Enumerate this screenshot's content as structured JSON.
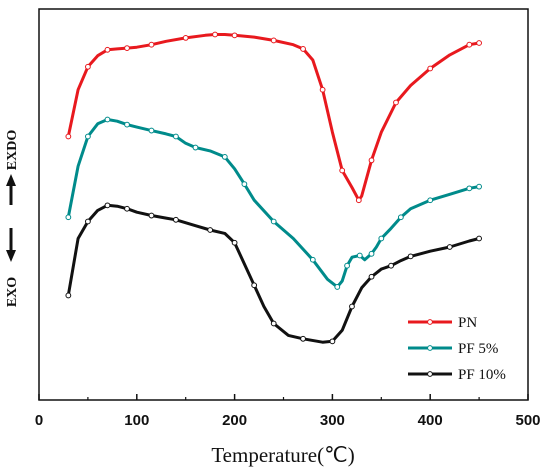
{
  "chart_data": {
    "type": "line",
    "xlabel": "Temperature(℃)",
    "ylabel_top": "EXDO",
    "ylabel_bottom": "EXO",
    "xlim": [
      0,
      500
    ],
    "ylim": [
      -2.2,
      2.4
    ],
    "x_ticks": [
      0,
      100,
      200,
      300,
      400,
      500
    ],
    "x_tick_labels": [
      "0",
      "100",
      "200",
      "300",
      "400",
      "500"
    ],
    "y_ticks_shown": false,
    "legend_position": "bottom-right",
    "series": [
      {
        "name": "PN",
        "color": "#e8191e",
        "marker": "circle",
        "points": [
          [
            30,
            0.9
          ],
          [
            40,
            1.45
          ],
          [
            50,
            1.72
          ],
          [
            60,
            1.85
          ],
          [
            70,
            1.92
          ],
          [
            80,
            1.93
          ],
          [
            90,
            1.94
          ],
          [
            100,
            1.95
          ],
          [
            115,
            1.98
          ],
          [
            130,
            2.02
          ],
          [
            150,
            2.06
          ],
          [
            170,
            2.09
          ],
          [
            180,
            2.1
          ],
          [
            190,
            2.1
          ],
          [
            200,
            2.09
          ],
          [
            220,
            2.07
          ],
          [
            240,
            2.03
          ],
          [
            260,
            1.98
          ],
          [
            270,
            1.93
          ],
          [
            280,
            1.8
          ],
          [
            290,
            1.45
          ],
          [
            300,
            0.95
          ],
          [
            310,
            0.5
          ],
          [
            320,
            0.3
          ],
          [
            327,
            0.15
          ],
          [
            330,
            0.2
          ],
          [
            340,
            0.62
          ],
          [
            350,
            0.95
          ],
          [
            365,
            1.3
          ],
          [
            380,
            1.5
          ],
          [
            400,
            1.7
          ],
          [
            420,
            1.86
          ],
          [
            440,
            1.98
          ],
          [
            450,
            2.0
          ]
        ]
      },
      {
        "name": "PF 5%",
        "color": "#008b8b",
        "marker": "circle",
        "points": [
          [
            30,
            -0.05
          ],
          [
            40,
            0.55
          ],
          [
            50,
            0.9
          ],
          [
            60,
            1.05
          ],
          [
            70,
            1.1
          ],
          [
            80,
            1.08
          ],
          [
            90,
            1.04
          ],
          [
            100,
            1.01
          ],
          [
            115,
            0.97
          ],
          [
            130,
            0.93
          ],
          [
            140,
            0.9
          ],
          [
            150,
            0.82
          ],
          [
            160,
            0.77
          ],
          [
            175,
            0.73
          ],
          [
            190,
            0.66
          ],
          [
            200,
            0.52
          ],
          [
            210,
            0.34
          ],
          [
            220,
            0.15
          ],
          [
            240,
            -0.1
          ],
          [
            260,
            -0.3
          ],
          [
            280,
            -0.55
          ],
          [
            295,
            -0.78
          ],
          [
            305,
            -0.87
          ],
          [
            310,
            -0.8
          ],
          [
            315,
            -0.62
          ],
          [
            320,
            -0.52
          ],
          [
            328,
            -0.5
          ],
          [
            333,
            -0.55
          ],
          [
            340,
            -0.48
          ],
          [
            345,
            -0.4
          ],
          [
            350,
            -0.3
          ],
          [
            360,
            -0.18
          ],
          [
            370,
            -0.05
          ],
          [
            380,
            0.05
          ],
          [
            400,
            0.15
          ],
          [
            420,
            0.22
          ],
          [
            440,
            0.29
          ],
          [
            450,
            0.31
          ]
        ]
      },
      {
        "name": "PF 10%",
        "color": "#111111",
        "marker": "circle",
        "points": [
          [
            30,
            -0.97
          ],
          [
            40,
            -0.3
          ],
          [
            50,
            -0.1
          ],
          [
            60,
            0.03
          ],
          [
            70,
            0.09
          ],
          [
            80,
            0.08
          ],
          [
            90,
            0.05
          ],
          [
            100,
            0.01
          ],
          [
            115,
            -0.03
          ],
          [
            130,
            -0.06
          ],
          [
            140,
            -0.08
          ],
          [
            160,
            -0.15
          ],
          [
            175,
            -0.2
          ],
          [
            190,
            -0.24
          ],
          [
            200,
            -0.35
          ],
          [
            210,
            -0.6
          ],
          [
            220,
            -0.85
          ],
          [
            230,
            -1.1
          ],
          [
            240,
            -1.3
          ],
          [
            255,
            -1.44
          ],
          [
            270,
            -1.48
          ],
          [
            290,
            -1.52
          ],
          [
            300,
            -1.51
          ],
          [
            310,
            -1.38
          ],
          [
            320,
            -1.1
          ],
          [
            330,
            -0.88
          ],
          [
            340,
            -0.75
          ],
          [
            350,
            -0.66
          ],
          [
            360,
            -0.62
          ],
          [
            370,
            -0.56
          ],
          [
            380,
            -0.51
          ],
          [
            400,
            -0.45
          ],
          [
            420,
            -0.4
          ],
          [
            440,
            -0.33
          ],
          [
            450,
            -0.3
          ]
        ]
      }
    ]
  }
}
